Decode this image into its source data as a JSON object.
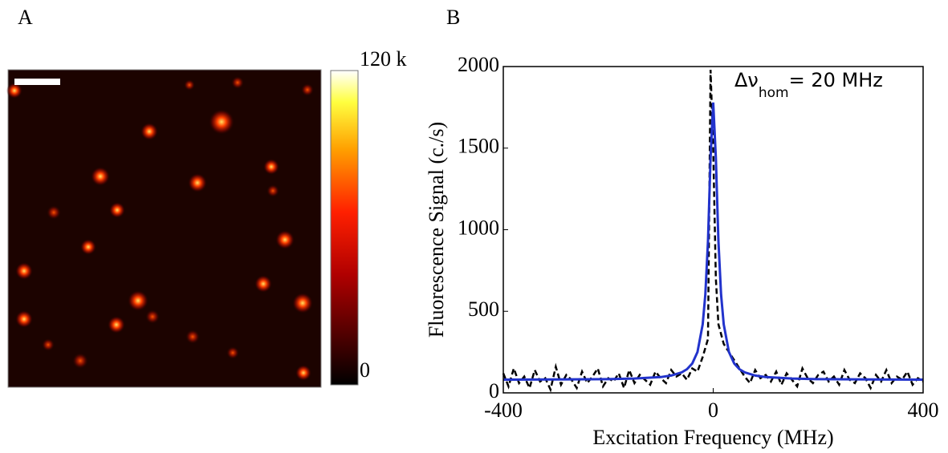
{
  "chart_data": [
    {
      "type": "heatmap",
      "panel_label": "A",
      "clim": [
        0,
        120000
      ],
      "cticks": [
        {
          "value": 120000,
          "label": "120 k"
        },
        0
      ]
    },
    {
      "type": "line",
      "panel_label": "B",
      "x_label": "Excitation Frequency (MHz)",
      "y_label": "Fluorescence Signal (c./s)",
      "annotation": {
        "prefix": "Δν",
        "sub": "hom",
        "suffix": "= 20 MHz"
      },
      "xlim": [
        -400,
        400
      ],
      "xticks": [
        -400,
        0,
        400
      ],
      "ylim": [
        0,
        2000
      ],
      "yticks": [
        0,
        500,
        1000,
        1500,
        2000
      ],
      "series": [
        {
          "color": "#000000",
          "style": "dashed",
          "x": [
            -400,
            -390,
            -380,
            -370,
            -360,
            -350,
            -340,
            -330,
            -320,
            -310,
            -300,
            -290,
            -280,
            -270,
            -260,
            -250,
            -240,
            -230,
            -220,
            -210,
            -200,
            -190,
            -180,
            -170,
            -160,
            -150,
            -140,
            -130,
            -120,
            -110,
            -100,
            -90,
            -80,
            -70,
            -60,
            -50,
            -40,
            -30,
            -20,
            -10,
            -5,
            0,
            5,
            10,
            20,
            30,
            40,
            50,
            60,
            70,
            80,
            90,
            100,
            110,
            120,
            130,
            140,
            150,
            160,
            170,
            180,
            190,
            200,
            210,
            220,
            230,
            240,
            250,
            260,
            270,
            280,
            290,
            300,
            310,
            320,
            330,
            340,
            350,
            360,
            370,
            380,
            390,
            400
          ],
          "values": [
            120,
            40,
            150,
            60,
            100,
            30,
            140,
            70,
            90,
            20,
            160,
            50,
            110,
            80,
            30,
            130,
            60,
            100,
            150,
            40,
            90,
            70,
            120,
            30,
            140,
            60,
            110,
            80,
            50,
            130,
            90,
            60,
            140,
            100,
            120,
            80,
            150,
            130,
            220,
            330,
            1980,
            1500,
            700,
            420,
            300,
            250,
            200,
            150,
            100,
            60,
            140,
            90,
            110,
            70,
            130,
            50,
            120,
            80,
            40,
            150,
            90,
            60,
            110,
            130,
            70,
            100,
            50,
            140,
            80,
            60,
            120,
            90,
            30,
            110,
            70,
            140,
            60,
            100,
            80,
            130,
            50,
            90,
            70
          ]
        },
        {
          "color": "#2233cc",
          "style": "solid",
          "x": [
            -400,
            -300,
            -200,
            -150,
            -100,
            -80,
            -60,
            -50,
            -40,
            -30,
            -20,
            -15,
            -10,
            -5,
            0,
            5,
            10,
            15,
            20,
            30,
            40,
            50,
            60,
            80,
            100,
            150,
            200,
            300,
            400
          ],
          "values": [
            81,
            82,
            84,
            88,
            97,
            106,
            126,
            145,
            180,
            250,
            420,
            603,
            930,
            1440,
            1780,
            1440,
            930,
            603,
            420,
            250,
            180,
            145,
            126,
            106,
            97,
            88,
            84,
            82,
            81
          ]
        }
      ]
    }
  ]
}
